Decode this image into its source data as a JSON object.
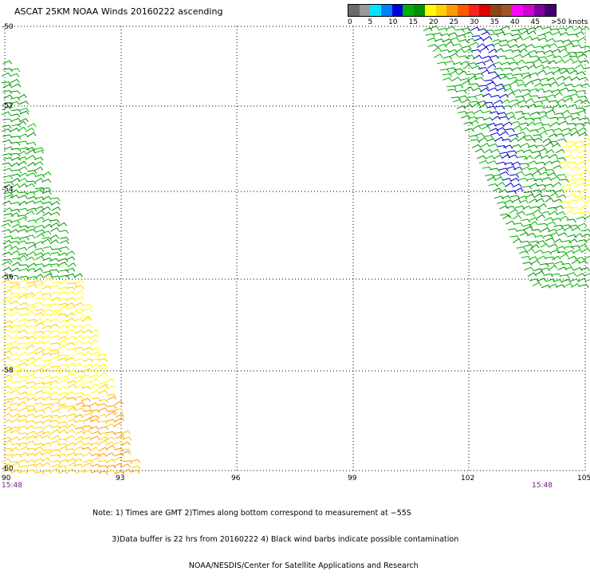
{
  "title": "ASCAT 25KM NOAA Winds 20160222 ascending",
  "legend": {
    "unit": "knots",
    "colors": [
      "#6b6b6b",
      "#9a9a9a",
      "#00e5ff",
      "#0080ff",
      "#0000e0",
      "#00b000",
      "#009000",
      "#ffff00",
      "#ffd000",
      "#ff9900",
      "#ff5a00",
      "#ff2020",
      "#e00000",
      "#8b4513",
      "#a0522d",
      "#ff00ff",
      "#d000d0",
      "#8000a0",
      "#400070"
    ],
    "tick_labels": [
      "0",
      "5",
      "10",
      "15",
      "20",
      "25",
      "30",
      "35",
      "40",
      "45",
      ">50 knots"
    ]
  },
  "axes": {
    "lat_labels": [
      "-50",
      "-52",
      "-54",
      "-56",
      "-58",
      "-60"
    ],
    "lon_labels": [
      "90",
      "93",
      "96",
      "99",
      "102",
      "105"
    ]
  },
  "times": {
    "left": "15:48",
    "right": "15:48"
  },
  "notes": [
    "Note: 1) Times are GMT 2)Times along bottom correspond to measurement at −55S",
    "        3)Data buffer is 22 hrs from 20160222 4) Black wind barbs indicate possible contamination",
    "                                        NOAA/NESDIS/Center for Satellite Applications and Research"
  ]
}
